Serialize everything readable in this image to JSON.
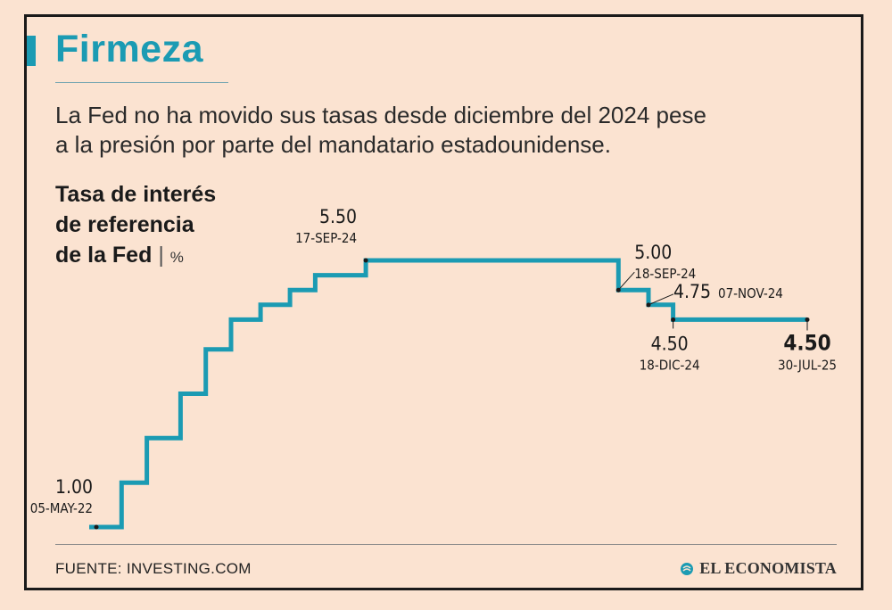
{
  "header": {
    "title": "Firmeza",
    "subtitle_line1": "La Fed no ha movido sus tasas desde diciembre del 2024 pese",
    "subtitle_line2": "a la presión por parte del mandatario estadounidense."
  },
  "chart_title": {
    "line1": "Tasa de interés",
    "line2": "de referencia",
    "line3": "de la Fed",
    "separator": "|",
    "unit": "%"
  },
  "footer": {
    "source": "FUENTE: INVESTING.COM",
    "logo": "EL ECONOMISTA"
  },
  "colors": {
    "line": "#1b9bb3",
    "background": "#fbe3d1",
    "text": "#1a1a1a"
  },
  "chart_data": {
    "type": "line",
    "step": true,
    "title": "Tasa de interés de referencia de la Fed",
    "unit": "%",
    "grid": false,
    "x": [
      "2022-05-05",
      "2022-06-16",
      "2022-07-28",
      "2022-09-22",
      "2022-11-03",
      "2022-12-15",
      "2023-02-02",
      "2023-03-23",
      "2023-05-04",
      "2023-07-27",
      "2024-09-19",
      "2024-11-08",
      "2024-12-19",
      "2025-07-30"
    ],
    "values": [
      1.0,
      1.75,
      2.5,
      3.25,
      4.0,
      4.5,
      4.75,
      5.0,
      5.25,
      5.5,
      5.0,
      4.75,
      4.5,
      4.5
    ],
    "ylim": [
      1.0,
      5.5
    ],
    "annotations": [
      {
        "value": "1.00",
        "date": "05-MAY-22",
        "index": 0,
        "bold": false
      },
      {
        "value": "5.50",
        "date": "17-SEP-24",
        "index": 9,
        "bold": false
      },
      {
        "value": "5.00",
        "date": "18-SEP-24",
        "index": 10,
        "bold": false
      },
      {
        "value": "4.75",
        "date": "07-NOV-24",
        "index": 11,
        "bold": false
      },
      {
        "value": "4.50",
        "date": "18-DIC-24",
        "index": 12,
        "bold": false
      },
      {
        "value": "4.50",
        "date": "30-JUL-25",
        "index": 13,
        "bold": true
      }
    ]
  }
}
